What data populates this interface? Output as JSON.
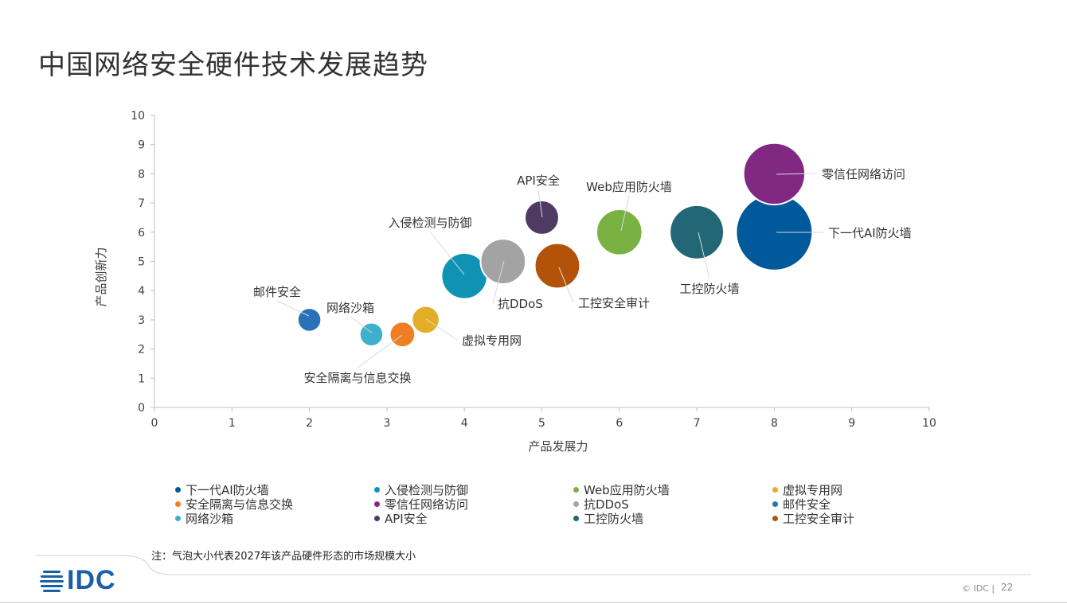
{
  "title": "中国网络安全硬件技术发展趋势",
  "note": "注：气泡大小代表2027年该产品硬件形态的市场规模大小",
  "footer": {
    "logo_text": "IDC",
    "copyright": "© IDC |",
    "page_number": "22"
  },
  "colors": {
    "ngfw": "#00599a",
    "ids": "#0e93b4",
    "waf": "#79b143",
    "vpn": "#e3ad27",
    "gap": "#f07f24",
    "zt": "#812882",
    "ddos": "#a3a3a3",
    "mail": "#2873b8",
    "sandbox": "#3eb0cc",
    "api": "#4f3a63",
    "icfw": "#236676",
    "audit": "#b3530a"
  },
  "chart_data": {
    "type": "bubble",
    "xlabel": "产品发展力",
    "ylabel": "产品创新力",
    "xlim": [
      0,
      10
    ],
    "ylim": [
      0,
      10
    ],
    "xticks": [
      "0",
      "1",
      "2",
      "3",
      "4",
      "5",
      "6",
      "7",
      "8",
      "9",
      "10"
    ],
    "yticks": [
      "0",
      "1",
      "2",
      "3",
      "4",
      "5",
      "6",
      "7",
      "8",
      "9",
      "10"
    ],
    "grid": false,
    "legend_position": "bottom",
    "series": [
      {
        "name": "下一代AI防火墙",
        "x": 8.0,
        "y": 6.0,
        "size": 1.0,
        "color": "#00599a"
      },
      {
        "name": "入侵检测与防御",
        "x": 4.0,
        "y": 4.5,
        "size": 0.36,
        "color": "#0e93b4"
      },
      {
        "name": "Web应用防火墙",
        "x": 6.0,
        "y": 6.0,
        "size": 0.36,
        "color": "#79b143"
      },
      {
        "name": "虚拟专用网",
        "x": 3.5,
        "y": 3.0,
        "size": 0.13,
        "color": "#e3ad27"
      },
      {
        "name": "安全隔离与信息交换",
        "x": 3.2,
        "y": 2.5,
        "size": 0.11,
        "color": "#f07f24"
      },
      {
        "name": "零信任网络访问",
        "x": 8.0,
        "y": 8.0,
        "size": 0.65,
        "color": "#812882"
      },
      {
        "name": "抗DDoS",
        "x": 4.5,
        "y": 5.0,
        "size": 0.35,
        "color": "#a3a3a3"
      },
      {
        "name": "邮件安全",
        "x": 2.0,
        "y": 3.0,
        "size": 0.095,
        "color": "#2873b8"
      },
      {
        "name": "网络沙箱",
        "x": 2.8,
        "y": 2.5,
        "size": 0.095,
        "color": "#3eb0cc"
      },
      {
        "name": "API安全",
        "x": 5.0,
        "y": 6.5,
        "size": 0.2,
        "color": "#4f3a63"
      },
      {
        "name": "工控防火墙",
        "x": 7.0,
        "y": 6.0,
        "size": 0.5,
        "color": "#236676"
      },
      {
        "name": "工控安全审计",
        "x": 5.2,
        "y": 4.85,
        "size": 0.35,
        "color": "#b3530a"
      }
    ]
  }
}
